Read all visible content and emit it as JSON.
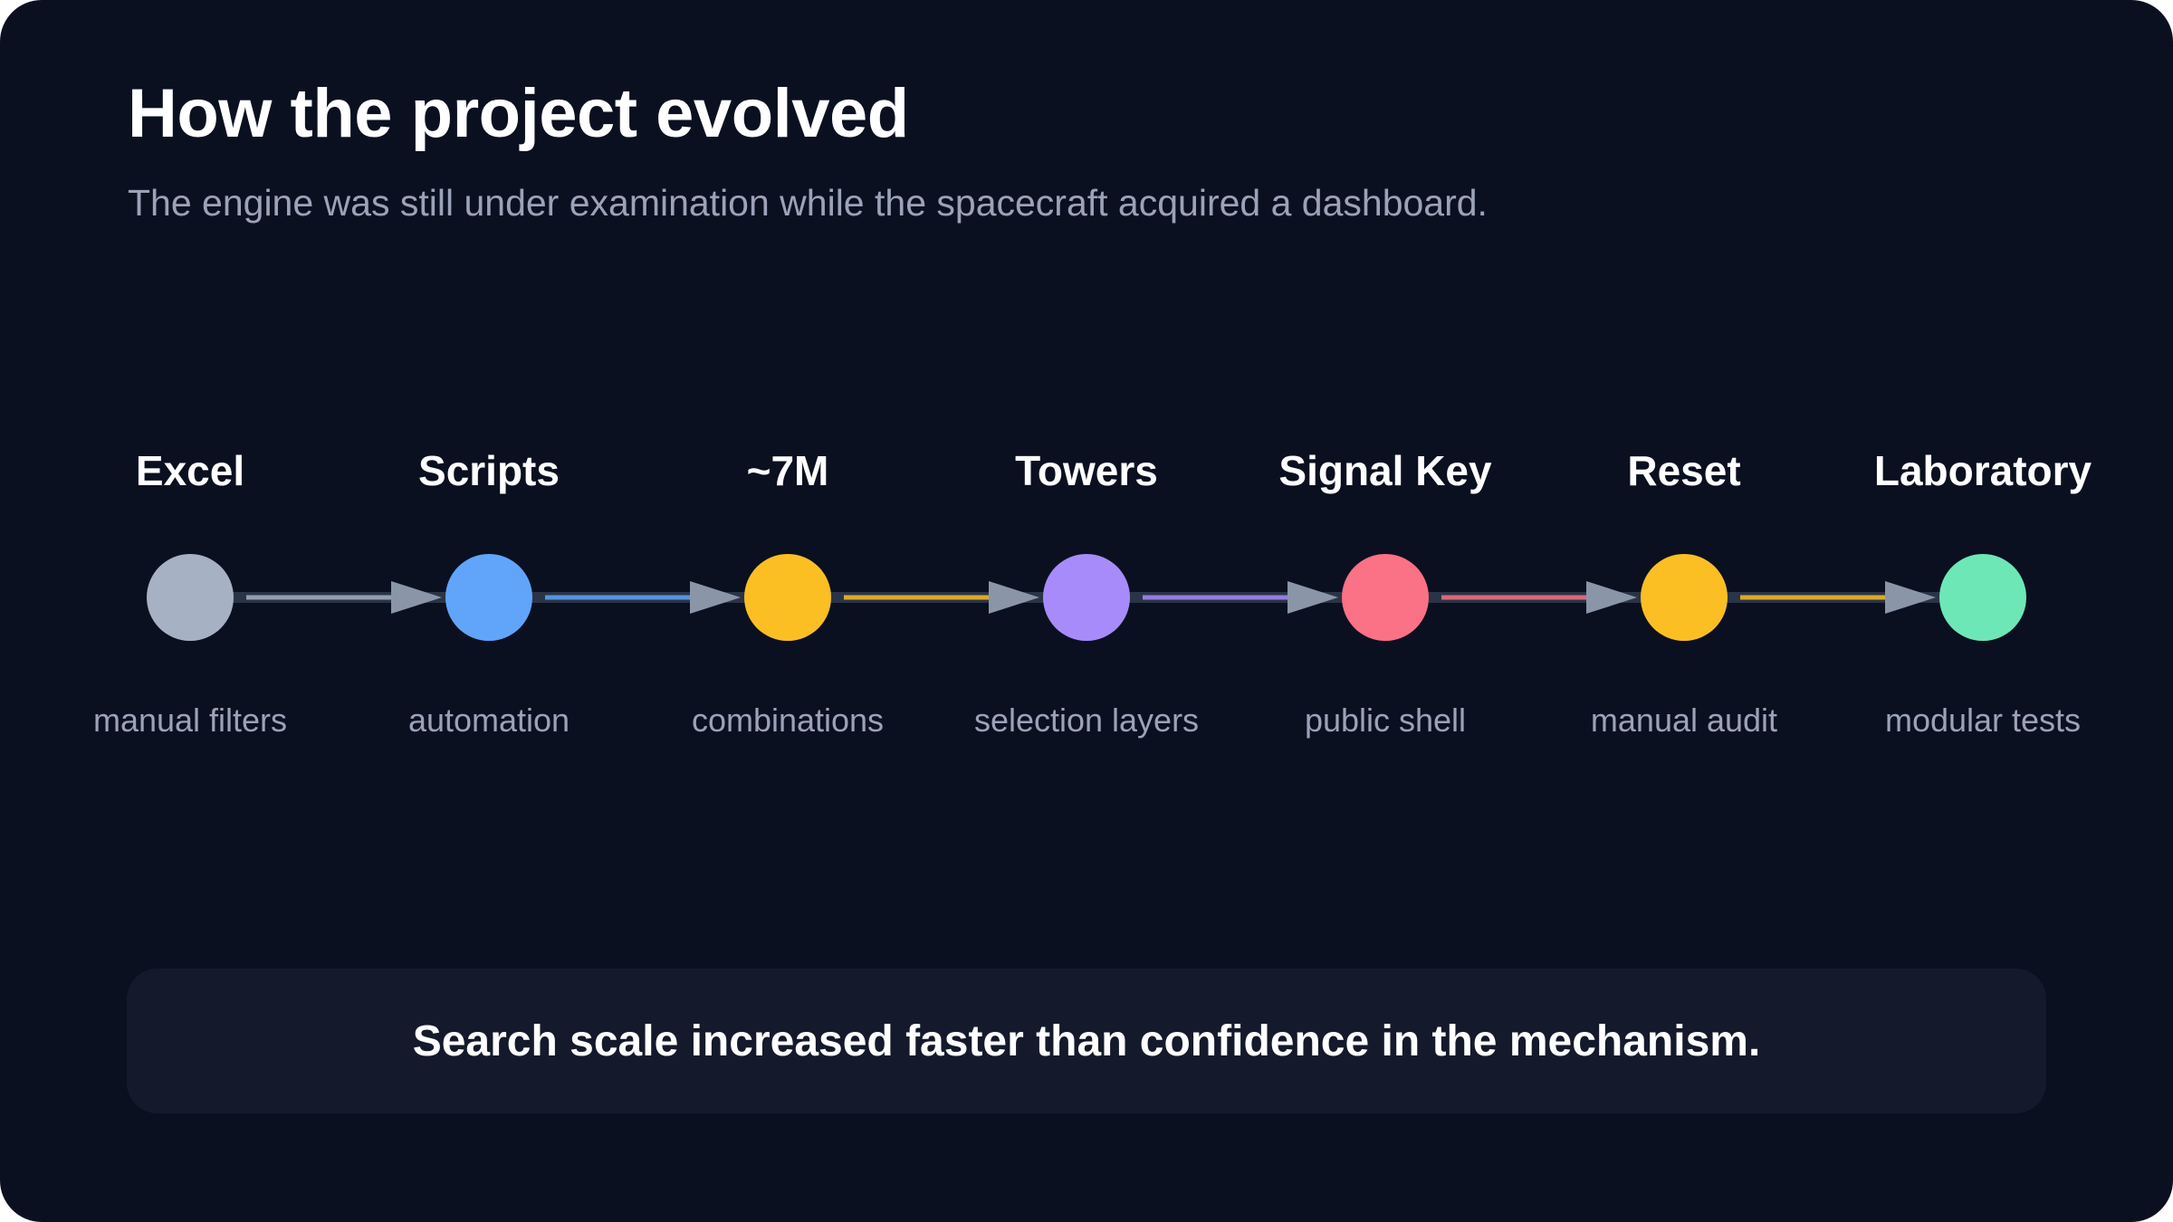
{
  "header": {
    "title": "How the project evolved",
    "subtitle": "The engine was still under examination while the spacecraft acquired a dashboard."
  },
  "steps": [
    {
      "title": "Excel",
      "desc": "manual filters",
      "color": "#a7b1c4"
    },
    {
      "title": "Scripts",
      "desc": "automation",
      "color": "#60a5fa"
    },
    {
      "title": "~7M",
      "desc": "combinations",
      "color": "#fbbf24"
    },
    {
      "title": "Towers",
      "desc": "selection layers",
      "color": "#a78bfa"
    },
    {
      "title": "Signal Key",
      "desc": "public shell",
      "color": "#fb7185"
    },
    {
      "title": "Reset",
      "desc": "manual audit",
      "color": "#fbbf24"
    },
    {
      "title": "Laboratory",
      "desc": "modular tests",
      "color": "#6ee7b7"
    }
  ],
  "colors": {
    "background": "#0b1020",
    "connector_track": "#2a3447",
    "arrowhead": "#8a95a8"
  },
  "callout": {
    "text": "Search scale increased faster than confidence in the mechanism."
  }
}
